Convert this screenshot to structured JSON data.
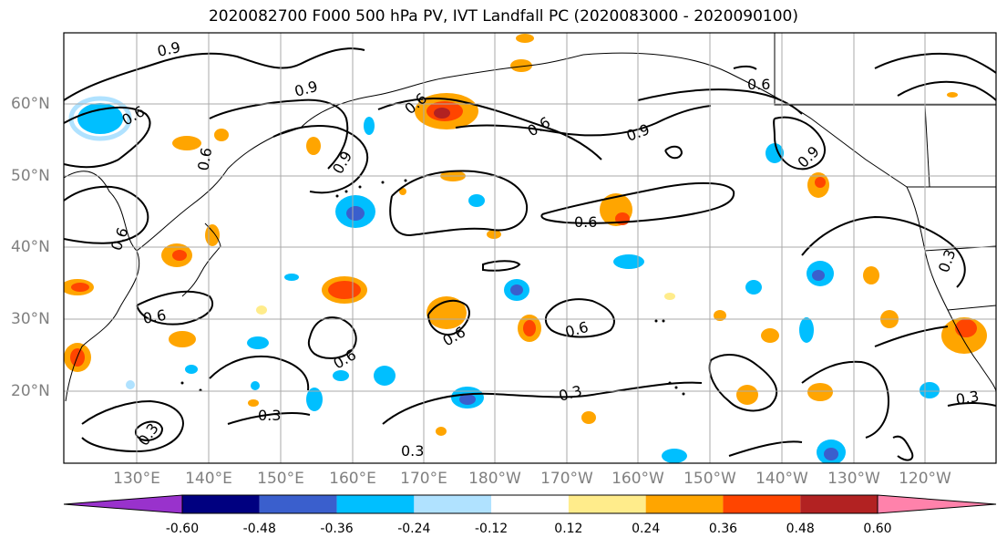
{
  "title": "2020082700 F000 500 hPa PV, IVT Landfall PC (2020083000 - 2020090100)",
  "map": {
    "lat_ticks": [
      "60°N",
      "50°N",
      "40°N",
      "30°N",
      "20°N"
    ],
    "lon_ticks": [
      "130°E",
      "140°E",
      "150°E",
      "160°E",
      "170°E",
      "180°W",
      "170°W",
      "160°W",
      "150°W",
      "140°W",
      "130°W",
      "120°W"
    ],
    "contour_labels": [
      {
        "text": "0.9"
      },
      {
        "text": "0.9"
      },
      {
        "text": "0.9"
      },
      {
        "text": "0.9"
      },
      {
        "text": "0.9"
      },
      {
        "text": "0.6"
      },
      {
        "text": "0.6"
      },
      {
        "text": "0.6"
      },
      {
        "text": "0.6"
      },
      {
        "text": "0.6"
      },
      {
        "text": "0.6"
      },
      {
        "text": "0.6"
      },
      {
        "text": "0.6"
      },
      {
        "text": "0.6"
      },
      {
        "text": "0.6"
      },
      {
        "text": "0.6"
      },
      {
        "text": "0.3"
      },
      {
        "text": "0.3"
      },
      {
        "text": "0.3"
      },
      {
        "text": "0.3"
      },
      {
        "text": "0.3"
      },
      {
        "text": "0.3"
      }
    ],
    "colors": {
      "land": "#000000",
      "grid": "#aaaaaa",
      "contour": "#000000"
    }
  },
  "colorbar": {
    "levels": [
      "-0.60",
      "-0.48",
      "-0.36",
      "-0.24",
      "-0.12",
      "0.12",
      "0.24",
      "0.36",
      "0.48",
      "0.60"
    ],
    "colors": [
      "#9932cc",
      "#000080",
      "#3a5fcd",
      "#00bfff",
      "#b0e2ff",
      "#ffffff",
      "#ffec8b",
      "#ffa500",
      "#ff4500",
      "#b22222",
      "#ff82ab"
    ]
  }
}
